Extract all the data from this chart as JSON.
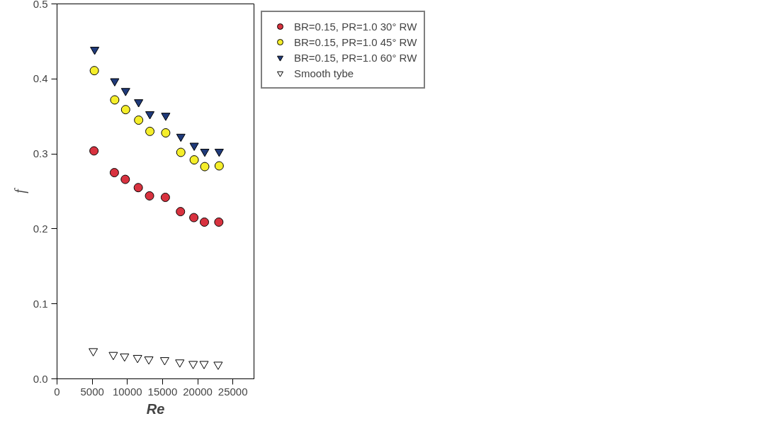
{
  "chart_data": {
    "type": "scatter",
    "xlabel": "Re",
    "ylabel": "f",
    "xlim": [
      0,
      28000
    ],
    "ylim": [
      0,
      0.5
    ],
    "xticks": [
      0,
      5000,
      10000,
      15000,
      20000,
      25000
    ],
    "yticks": [
      {
        "value": 0,
        "label": "0.0"
      },
      0.1,
      0.2,
      0.3,
      0.4,
      0.5
    ],
    "grid": false,
    "legend": "right",
    "series": [
      {
        "name": "BR=0.15, PR=1.0 30° RW",
        "color": "#d8323f",
        "marker": "circle",
        "x": [
          5250,
          8150,
          9700,
          11550,
          13150,
          15400,
          17550,
          19450,
          20950,
          23000
        ],
        "values": [
          0.304,
          0.275,
          0.266,
          0.255,
          0.244,
          0.242,
          0.223,
          0.215,
          0.209,
          0.209
        ]
      },
      {
        "name": "BR=0.15, PR=1.0 45° RW",
        "color": "#f5ee2a",
        "marker": "circle",
        "x": [
          5300,
          8200,
          9750,
          11600,
          13200,
          15450,
          17600,
          19500,
          21000,
          23050
        ],
        "values": [
          0.411,
          0.372,
          0.359,
          0.345,
          0.33,
          0.328,
          0.302,
          0.292,
          0.283,
          0.284
        ]
      },
      {
        "name": "BR=0.15, PR=1.0 60° RW",
        "color": "#1f3a7a",
        "marker": "triangle",
        "x": [
          5350,
          8200,
          9750,
          11600,
          13200,
          15450,
          17600,
          19500,
          21000,
          23050
        ],
        "values": [
          0.439,
          0.397,
          0.384,
          0.369,
          0.353,
          0.351,
          0.323,
          0.311,
          0.303,
          0.303
        ]
      },
      {
        "name": "Smooth tybe",
        "color": "#ffffff",
        "marker": "triangle",
        "x": [
          5150,
          8000,
          9600,
          11450,
          13050,
          15300,
          17450,
          19350,
          20900,
          22900
        ],
        "values": [
          0.037,
          0.032,
          0.03,
          0.028,
          0.026,
          0.025,
          0.022,
          0.02,
          0.02,
          0.019
        ]
      }
    ]
  }
}
